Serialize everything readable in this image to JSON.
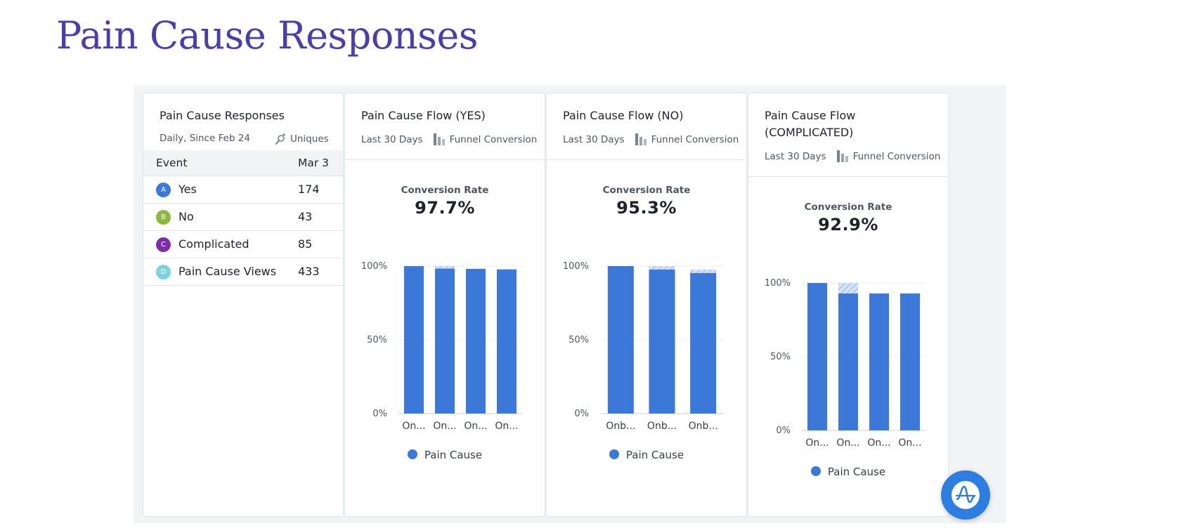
{
  "page": {
    "title": "Pain Cause Responses"
  },
  "colors": {
    "title": "#4a3fa6",
    "bar": "#3b78d8",
    "bar_dropoff": "#b9cff0"
  },
  "responses_card": {
    "title": "Pain Cause Responses",
    "subtitle_left": "Daily, Since Feb 24",
    "subtitle_right": "Uniques",
    "metric_icon": "uniques-icon",
    "col_event": "Event",
    "col_date": "Mar 3",
    "rows": [
      {
        "badge": "A",
        "event": "Yes",
        "value": "174",
        "color": "#3b78d8"
      },
      {
        "badge": "B",
        "event": "No",
        "value": "43",
        "color": "#8cb842"
      },
      {
        "badge": "C",
        "event": "Complicated",
        "value": "85",
        "color": "#7d2da8"
      },
      {
        "badge": "D",
        "event": "Pain Cause Views",
        "value": "433",
        "color": "#7fd1de"
      }
    ]
  },
  "funnel_cards": [
    {
      "title": "Pain Cause Flow (YES)",
      "range": "Last 30 Days",
      "chart_kind": "Funnel Conversion",
      "rate_label": "Conversion Rate",
      "rate_value": "97.7%",
      "legend": "Pain Cause"
    },
    {
      "title": "Pain Cause Flow (NO)",
      "range": "Last 30 Days",
      "chart_kind": "Funnel Conversion",
      "rate_label": "Conversion Rate",
      "rate_value": "95.3%",
      "legend": "Pain Cause"
    },
    {
      "title_line1": "Pain Cause Flow",
      "title_line2": "(COMPLICATED)",
      "range": "Last 30 Days",
      "chart_kind": "Funnel Conversion",
      "rate_label": "Conversion Rate",
      "rate_value": "92.9%",
      "legend": "Pain Cause"
    }
  ],
  "chart_data": [
    {
      "type": "bar",
      "title": "Pain Cause Flow (YES)",
      "categories": [
        "On...",
        "On...",
        "On...",
        "On..."
      ],
      "series": [
        {
          "name": "Pain Cause",
          "values": [
            100,
            98.3,
            98.1,
            97.7
          ]
        }
      ],
      "yticks": [
        "0%",
        "50%",
        "100%"
      ],
      "ylim": [
        0,
        100
      ]
    },
    {
      "type": "bar",
      "title": "Pain Cause Flow (NO)",
      "categories": [
        "Onb...",
        "Onb...",
        "Onb..."
      ],
      "series": [
        {
          "name": "Pain Cause",
          "values": [
            100,
            97.7,
            95.3
          ]
        }
      ],
      "yticks": [
        "0%",
        "50%",
        "100%"
      ],
      "ylim": [
        0,
        100
      ]
    },
    {
      "type": "bar",
      "title": "Pain Cause Flow (COMPLICATED)",
      "categories": [
        "On...",
        "On...",
        "On...",
        "On..."
      ],
      "series": [
        {
          "name": "Pain Cause",
          "values": [
            100,
            92.9,
            92.9,
            92.9
          ]
        }
      ],
      "yticks": [
        "0%",
        "50%",
        "100%"
      ],
      "ylim": [
        0,
        100
      ]
    }
  ]
}
